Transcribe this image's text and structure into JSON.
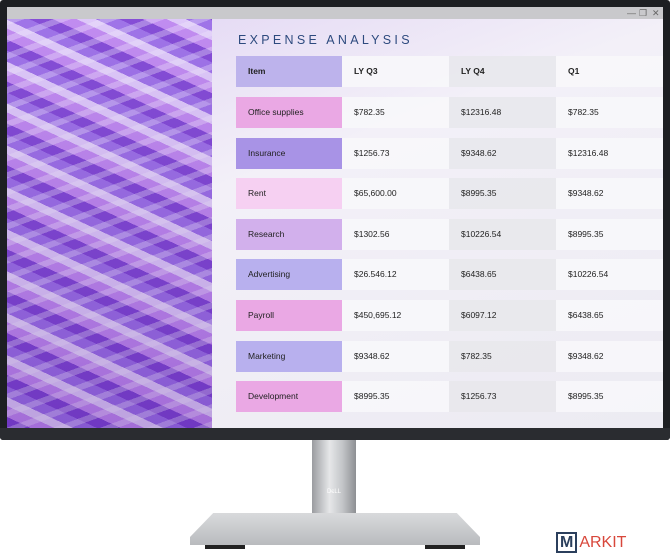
{
  "window": {
    "controls": [
      "minimize",
      "restore",
      "close"
    ]
  },
  "title": "EXPENSE ANALYSIS",
  "table": {
    "headers": [
      "Item",
      "LY Q3",
      "LY Q4",
      "Q1"
    ],
    "rows": [
      {
        "item": "Office supplies",
        "color": "#eaa8e4",
        "ly_q3": "$782.35",
        "ly_q4": "$12316.48",
        "q1": "$782.35"
      },
      {
        "item": "Insurance",
        "color": "#a893e6",
        "ly_q3": "$1256.73",
        "ly_q4": "$9348.62",
        "q1": "$12316.48"
      },
      {
        "item": "Rent",
        "color": "#f6d0f2",
        "ly_q3": "$65,600.00",
        "ly_q4": "$8995.35",
        "q1": "$9348.62"
      },
      {
        "item": "Research",
        "color": "#d2b0ec",
        "ly_q3": "$1302.56",
        "ly_q4": "$10226.54",
        "q1": "$8995.35"
      },
      {
        "item": "Advertising",
        "color": "#b8b0ee",
        "ly_q3": "$26.546.12",
        "ly_q4": "$6438.65",
        "q1": "$10226.54"
      },
      {
        "item": "Payroll",
        "color": "#eaa8e4",
        "ly_q3": "$450,695.12",
        "ly_q4": "$6097.12",
        "q1": "$6438.65"
      },
      {
        "item": "Marketing",
        "color": "#b8b0ee",
        "ly_q3": "$9348.62",
        "ly_q4": "$782.35",
        "q1": "$9348.62"
      },
      {
        "item": "Development",
        "color": "#eaa8e4",
        "ly_q3": "$8995.35",
        "ly_q4": "$1256.73",
        "q1": "$8995.35"
      }
    ]
  },
  "brand_logo": "DELL",
  "watermark": {
    "m": "M",
    "rest": "ARKIT"
  }
}
